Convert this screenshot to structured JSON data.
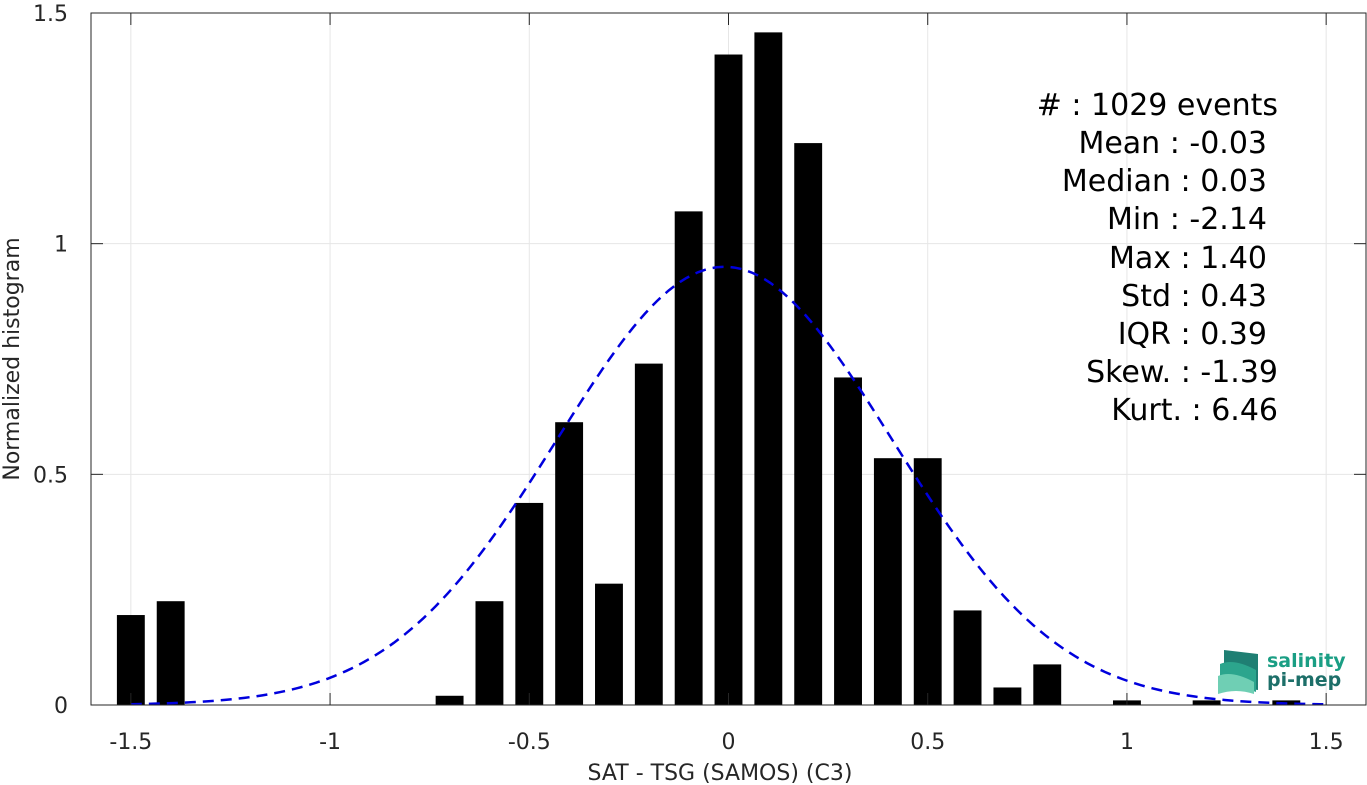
{
  "chart_data": {
    "type": "bar",
    "xlabel": "SAT - TSG (SAMOS) (C3)",
    "ylabel": "Normalized histogram",
    "xlim": [
      -1.6,
      1.6
    ],
    "ylim": [
      0,
      1.5
    ],
    "xticks": [
      -1.5,
      -1,
      -0.5,
      0,
      0.5,
      1,
      1.5
    ],
    "xtick_labels": [
      "-1.5",
      "-1",
      "-0.5",
      "0",
      "0.5",
      "1",
      "1.5"
    ],
    "yticks": [
      0,
      0.5,
      1,
      1.5
    ],
    "ytick_labels": [
      "0",
      "0.5",
      "1",
      "1.5"
    ],
    "grid": true,
    "bar_width": 0.07,
    "bars": {
      "x": [
        -1.5,
        -1.4,
        -0.7,
        -0.6,
        -0.5,
        -0.4,
        -0.3,
        -0.2,
        -0.1,
        0.0,
        0.1,
        0.2,
        0.3,
        0.4,
        0.5,
        0.6,
        0.7,
        0.8,
        1.0,
        1.2,
        1.4
      ],
      "values": [
        0.195,
        0.225,
        0.02,
        0.225,
        0.438,
        0.613,
        0.263,
        0.74,
        1.07,
        1.41,
        1.458,
        1.218,
        0.71,
        0.535,
        0.535,
        0.205,
        0.038,
        0.088,
        0.01,
        0.01,
        0.01
      ],
      "color": "#000000"
    },
    "fit_curve": {
      "style": "dashed",
      "color": "#0000dd",
      "mean": -0.01,
      "std": 0.42,
      "x_range": [
        -1.5,
        1.5
      ]
    }
  },
  "stats": [
    {
      "label": "#  : 1029 events"
    },
    {
      "label": "Mean : -0.03"
    },
    {
      "label": "Median : 0.03"
    },
    {
      "label": "Min : -2.14"
    },
    {
      "label": "Max : 1.40"
    },
    {
      "label": "Std : 0.43"
    },
    {
      "label": "IQR : 0.39"
    },
    {
      "label": "Skew. : -1.39"
    },
    {
      "label": "Kurt. : 6.46"
    }
  ],
  "logo": {
    "line1": "salinity",
    "line2": "pi-mep",
    "color": "#1a9e84"
  }
}
